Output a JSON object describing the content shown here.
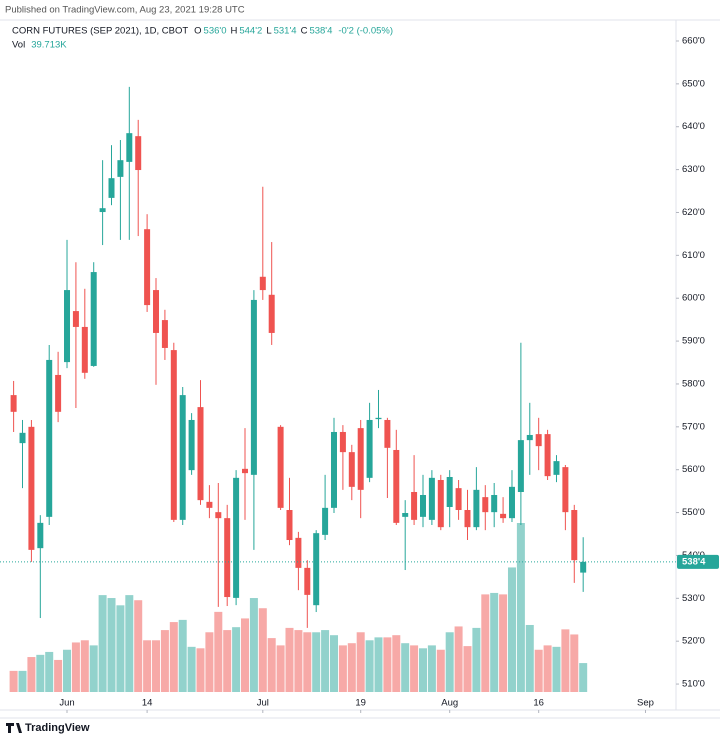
{
  "chart_data": {
    "type": "candlestick",
    "published": "Published on TradingView.com, Aug 23, 2021 19:28 UTC",
    "title": "CORN FUTURES (SEP 2021), 1D, CBOT",
    "ohlc_labels": [
      {
        "key": "O",
        "value": "536'0"
      },
      {
        "key": "H",
        "value": "544'2"
      },
      {
        "key": "L",
        "value": "531'4"
      },
      {
        "key": "C",
        "value": "538'4"
      }
    ],
    "change_label": "-0'2 (-0.05%)",
    "volume_name": "Vol",
    "volume_label": "39.713K",
    "brand": "TradingView",
    "up_color": "#26a69a",
    "down_color": "#ef5350",
    "open": [
      577.4,
      566.2,
      570.0,
      541.7,
      549.0,
      582.1,
      585.1,
      597.0,
      593.3,
      584.2,
      620.1,
      623.4,
      628.3,
      631.8,
      637.8,
      616.1,
      601.9,
      594.9,
      587.9,
      548.3,
      559.9,
      574.6,
      552.5,
      550.1,
      548.7,
      530.1,
      560.2,
      558.8,
      605.0,
      600.8,
      570.0,
      550.6,
      544.1,
      537.1,
      528.4,
      544.8,
      551.1,
      568.8,
      564.1,
      569.7,
      558.1,
      571.8,
      571.6,
      564.6,
      549.0,
      554.8,
      549.0,
      548.3,
      557.6,
      551.3,
      555.7,
      550.6,
      546.6,
      553.6,
      550.1,
      549.7,
      548.7,
      554.8,
      566.9,
      568.3,
      568.3,
      558.8,
      560.6,
      550.6,
      536.0
    ],
    "high": [
      580.7,
      571.6,
      571.6,
      549.4,
      589.1,
      587.5,
      613.6,
      608.4,
      602.2,
      608.4,
      632.2,
      635.7,
      636.9,
      649.3,
      641.6,
      619.6,
      604.7,
      597.3,
      589.6,
      579.3,
      573.2,
      580.9,
      556.4,
      556.9,
      551.8,
      559.9,
      569.7,
      601.9,
      626.0,
      613.1,
      570.4,
      558.1,
      545.5,
      538.9,
      545.9,
      558.8,
      572.1,
      570.4,
      565.8,
      571.6,
      575.6,
      578.6,
      572.1,
      569.3,
      552.9,
      563.4,
      558.8,
      559.9,
      558.8,
      559.9,
      557.6,
      555.3,
      560.6,
      556.4,
      556.9,
      553.6,
      559.9,
      589.6,
      575.6,
      572.1,
      569.3,
      563.4,
      561.1,
      551.8,
      544.25
    ],
    "low": [
      568.8,
      555.7,
      538.5,
      525.4,
      547.1,
      571.1,
      583.7,
      574.4,
      581.2,
      584.0,
      612.4,
      621.7,
      613.6,
      613.6,
      614.5,
      596.8,
      579.8,
      585.6,
      547.8,
      547.1,
      558.8,
      551.8,
      548.7,
      528.0,
      528.2,
      528.4,
      548.3,
      541.3,
      599.6,
      589.1,
      550.6,
      542.4,
      531.9,
      523.1,
      526.8,
      543.6,
      549.9,
      555.3,
      552.9,
      548.7,
      557.1,
      569.7,
      553.4,
      547.1,
      536.6,
      547.1,
      546.6,
      547.1,
      545.9,
      546.6,
      548.3,
      543.6,
      545.9,
      545.9,
      546.6,
      547.6,
      547.8,
      547.1,
      558.8,
      559.9,
      557.6,
      557.1,
      545.9,
      533.6,
      531.5
    ],
    "close": [
      573.5,
      568.6,
      541.3,
      547.6,
      585.6,
      573.5,
      601.9,
      593.3,
      582.6,
      606.1,
      621.0,
      628.0,
      632.2,
      638.5,
      629.9,
      598.4,
      591.9,
      588.4,
      548.3,
      577.4,
      571.6,
      552.9,
      551.1,
      548.7,
      530.3,
      558.1,
      559.2,
      599.6,
      601.9,
      591.9,
      551.1,
      543.6,
      537.1,
      530.8,
      545.2,
      551.1,
      568.8,
      564.1,
      556.0,
      555.3,
      571.6,
      572.1,
      565.1,
      547.6,
      549.9,
      548.3,
      554.1,
      558.1,
      546.6,
      558.3,
      550.6,
      546.6,
      555.3,
      550.1,
      554.1,
      548.7,
      556.0,
      566.9,
      568.1,
      565.5,
      558.5,
      562.0,
      550.1,
      538.9,
      538.5
    ],
    "volume": [
      29,
      29,
      48,
      51,
      55,
      44,
      58,
      68,
      71,
      64,
      133,
      129,
      119,
      133,
      126,
      71,
      71,
      85,
      96,
      99,
      62,
      60,
      82,
      110,
      85,
      89,
      101,
      129,
      115,
      74,
      64,
      88,
      85,
      82,
      82,
      85,
      78,
      64,
      67,
      82,
      71,
      75,
      75,
      78,
      67,
      64,
      60,
      64,
      58,
      82,
      90,
      63,
      88,
      134,
      136,
      134,
      171,
      232,
      92,
      58,
      64,
      62,
      86,
      79,
      39.713
    ],
    "volume_lim": [
      0,
      950
    ],
    "ylim": [
      503.95,
      669.56
    ],
    "yticks": [
      {
        "value": 510,
        "label": "510'0"
      },
      {
        "value": 520,
        "label": "520'0"
      },
      {
        "value": 530,
        "label": "530'0"
      },
      {
        "value": 540,
        "label": "540'0"
      },
      {
        "value": 550,
        "label": "550'0"
      },
      {
        "value": 560,
        "label": "560'0"
      },
      {
        "value": 570,
        "label": "570'0"
      },
      {
        "value": 580,
        "label": "580'0"
      },
      {
        "value": 590,
        "label": "590'0"
      },
      {
        "value": 600,
        "label": "600'0"
      },
      {
        "value": 610,
        "label": "610'0"
      },
      {
        "value": 620,
        "label": "620'0"
      },
      {
        "value": 630,
        "label": "630'0"
      },
      {
        "value": 640,
        "label": "640'0"
      },
      {
        "value": 650,
        "label": "650'0"
      },
      {
        "value": 660,
        "label": "660'0"
      }
    ],
    "xlim": [
      -1.53,
      74.43
    ],
    "xticks": [
      {
        "value": 6,
        "label": "Jun"
      },
      {
        "value": 15,
        "label": "14"
      },
      {
        "value": 28,
        "label": "Jul"
      },
      {
        "value": 39,
        "label": "19"
      },
      {
        "value": 49,
        "label": "Aug"
      },
      {
        "value": 59,
        "label": "16"
      },
      {
        "value": 71,
        "label": "Sep"
      }
    ]
  }
}
